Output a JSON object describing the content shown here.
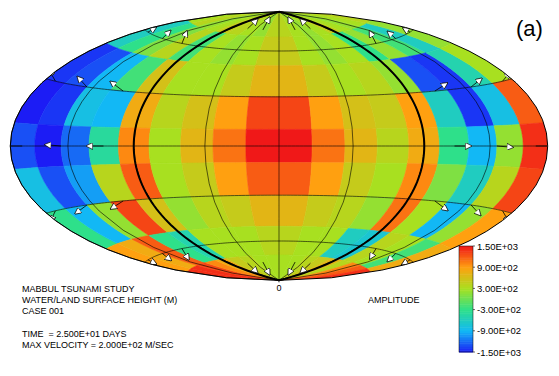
{
  "chart_data": {
    "type": "heatmap",
    "title": "MABBUL TSUNAMI STUDY",
    "subtitle": "WATER/LAND SURFACE HEIGHT (M)",
    "annotations": [
      "CASE 001",
      "TIME  = 2.500E+01 DAYS",
      "MAX VELOCITY = 2.000E+02 M/SEC",
      "(a)"
    ],
    "xlim": [
      -180,
      180
    ],
    "ylim": [
      -90,
      90
    ],
    "xticks": [
      0
    ],
    "tick_labels": "x",
    "grid": true,
    "x": [
      -170,
      -150,
      -130,
      -110,
      -90,
      -70,
      -50,
      -30,
      -10,
      10,
      30,
      50,
      70,
      90,
      110,
      130,
      150,
      170
    ],
    "y": [
      80,
      60,
      40,
      20,
      0,
      -20,
      -40,
      -60,
      -80
    ],
    "cells": [
      [
        300,
        400,
        200,
        300,
        500,
        400,
        300,
        200,
        400,
        400,
        300,
        200,
        300,
        500,
        300,
        200,
        300,
        400
      ],
      [
        -600,
        -300,
        100,
        400,
        -200,
        300,
        200,
        300,
        500,
        500,
        300,
        200,
        300,
        -300,
        200,
        -200,
        -600,
        200
      ],
      [
        -1400,
        -1300,
        -900,
        -200,
        600,
        300,
        300,
        500,
        700,
        700,
        500,
        300,
        400,
        200,
        -1300,
        -1400,
        -500,
        300
      ],
      [
        -1500,
        -1400,
        -800,
        -900,
        800,
        400,
        600,
        900,
        1300,
        1300,
        900,
        600,
        500,
        900,
        -600,
        -1400,
        -800,
        1200
      ],
      [
        -1300,
        -1500,
        -1200,
        -400,
        1000,
        300,
        700,
        1100,
        1500,
        1500,
        1100,
        700,
        400,
        800,
        -300,
        -900,
        200,
        1400
      ],
      [
        -800,
        -1300,
        -1000,
        400,
        1200,
        300,
        500,
        900,
        1200,
        1200,
        900,
        500,
        300,
        1000,
        100,
        -600,
        400,
        1300
      ],
      [
        -300,
        -900,
        200,
        1300,
        600,
        200,
        400,
        500,
        700,
        700,
        500,
        400,
        200,
        1100,
        300,
        -900,
        200,
        900
      ],
      [
        900,
        800,
        1200,
        -300,
        -500,
        300,
        300,
        300,
        400,
        400,
        300,
        300,
        -600,
        -700,
        400,
        300,
        -200,
        800
      ],
      [
        1400,
        1400,
        1300,
        1000,
        800,
        500,
        400,
        300,
        300,
        300,
        300,
        400,
        500,
        700,
        400,
        1000,
        1200,
        1400
      ]
    ],
    "colorbar": {
      "label": "AMPLITUDE",
      "range": [
        -1500,
        1500
      ],
      "ticks": [
        {
          "value": 1500,
          "label": "1.50E+03"
        },
        {
          "value": 900,
          "label": "9.00E+02"
        },
        {
          "value": 300,
          "label": "3.00E+02"
        },
        {
          "value": -300,
          "label": "-3.00E+02"
        },
        {
          "value": -900,
          "label": "-9.00E+02"
        },
        {
          "value": -1500,
          "label": "-1.50E+03"
        }
      ]
    },
    "vectors": {
      "lon": [
        -110,
        -110,
        -110,
        -110,
        -110,
        -140,
        -140,
        -140,
        -140,
        -140,
        -170,
        -170,
        -170,
        -170,
        -170,
        110,
        110,
        110,
        110,
        110,
        140,
        140,
        140,
        140,
        140,
        170,
        170,
        170,
        170,
        170,
        -60,
        -30,
        30,
        60,
        -60,
        -30,
        30,
        60
      ],
      "lat": [
        60,
        30,
        0,
        -30,
        -60,
        60,
        30,
        0,
        -30,
        -60,
        60,
        30,
        0,
        -30,
        -60,
        60,
        30,
        0,
        -30,
        -60,
        60,
        30,
        0,
        -30,
        -60,
        60,
        30,
        0,
        -30,
        -60,
        75,
        75,
        75,
        75,
        -75,
        -75,
        -75,
        -75
      ],
      "u": [
        -120,
        -170,
        -190,
        -160,
        -110,
        -100,
        -150,
        -180,
        -160,
        -90,
        -80,
        -140,
        -200,
        -130,
        -70,
        120,
        160,
        190,
        170,
        100,
        90,
        150,
        180,
        150,
        100,
        70,
        130,
        190,
        140,
        80,
        -40,
        -20,
        20,
        40,
        -40,
        -20,
        20,
        40
      ],
      "v": [
        90,
        60,
        0,
        -50,
        -100,
        80,
        50,
        10,
        -40,
        -90,
        70,
        40,
        0,
        -40,
        -80,
        100,
        50,
        0,
        -60,
        -90,
        80,
        40,
        -10,
        -50,
        -80,
        60,
        30,
        0,
        -40,
        -70,
        150,
        160,
        160,
        150,
        -150,
        -160,
        -160,
        -150
      ]
    }
  }
}
